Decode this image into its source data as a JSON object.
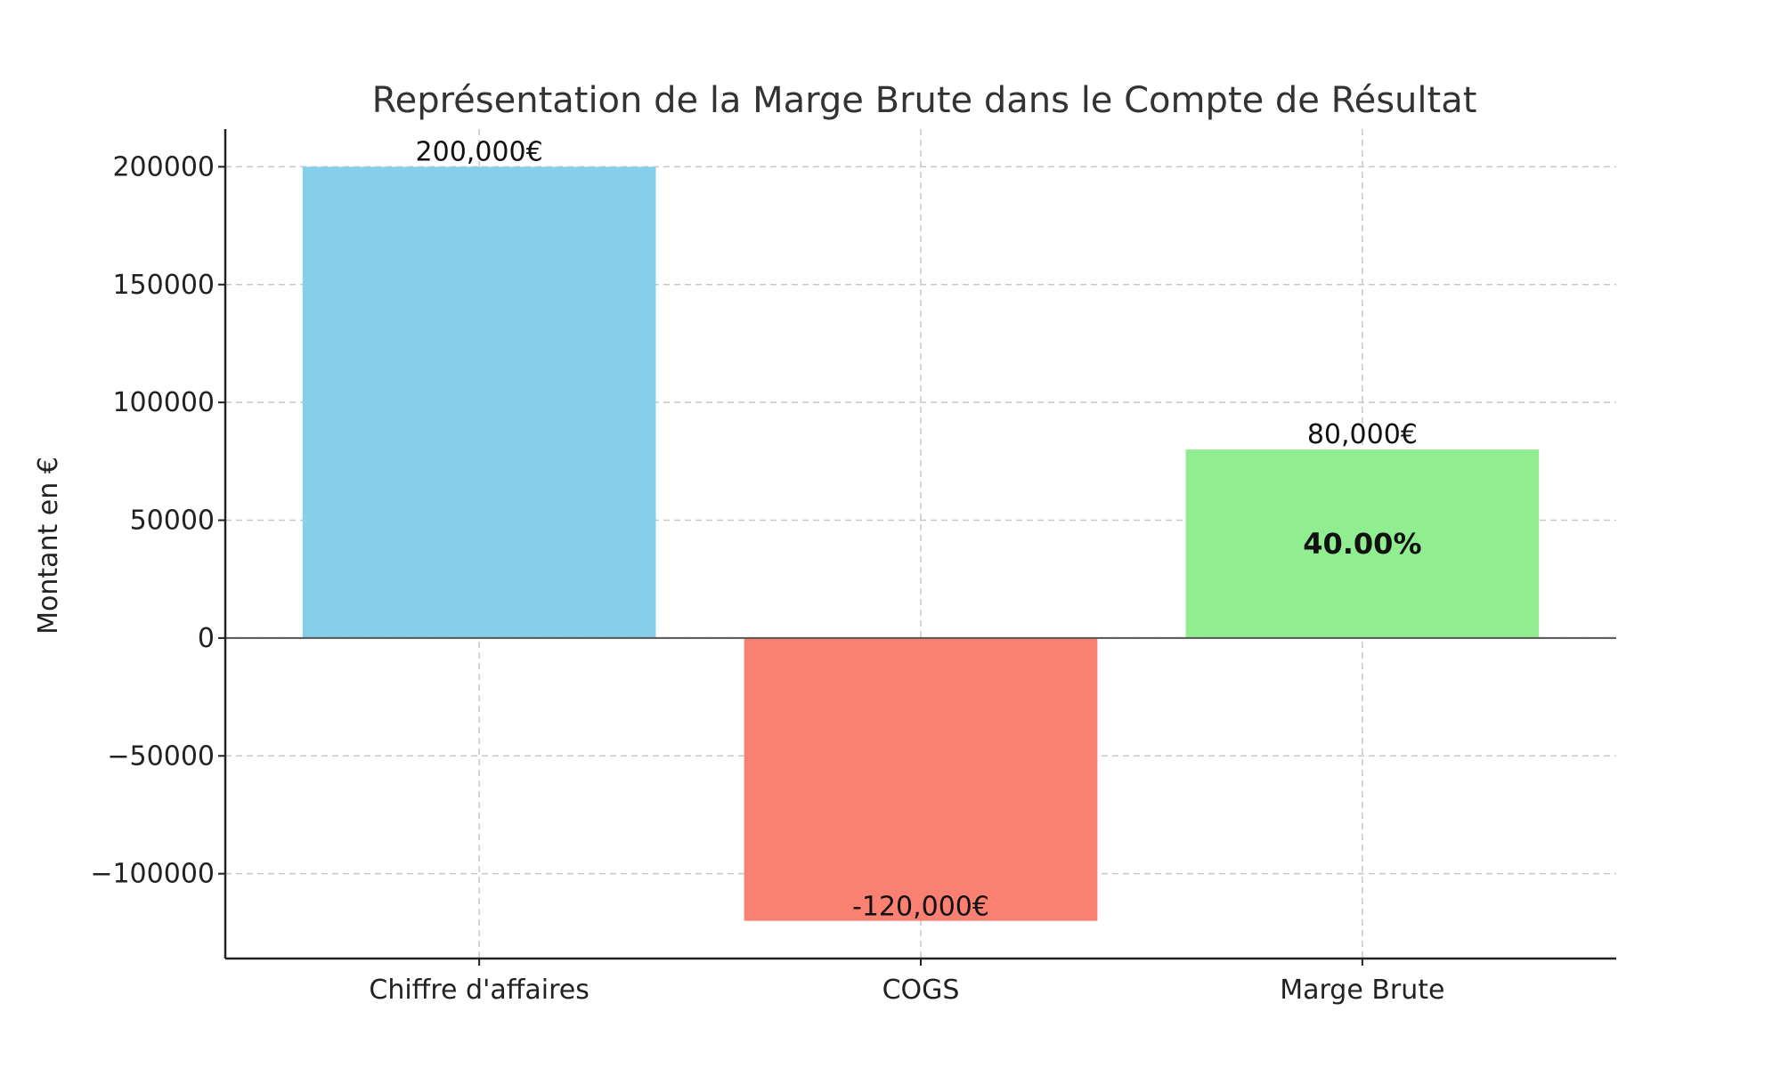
{
  "chart_data": {
    "type": "bar",
    "title": "Représentation de la Marge Brute dans le Compte de Résultat",
    "xlabel": "",
    "ylabel": "Montant en €",
    "categories": [
      "Chiffre d'affaires",
      "COGS",
      "Marge Brute"
    ],
    "values": [
      200000,
      -120000,
      80000
    ],
    "data_labels": [
      "200,000€",
      "-120,000€",
      "80,000€"
    ],
    "colors": [
      "#87ceeb",
      "#fa8072",
      "#90ee90"
    ],
    "annotation": {
      "category": "Marge Brute",
      "text": "40.00%"
    },
    "ylim": [
      -136000,
      216000
    ],
    "yticks": [
      200000,
      150000,
      100000,
      50000,
      0,
      -50000,
      -100000
    ],
    "ytick_labels": [
      "200000",
      "150000",
      "100000",
      "50000",
      "0",
      "−50000",
      "−100000"
    ],
    "grid": true,
    "legend": "none"
  }
}
